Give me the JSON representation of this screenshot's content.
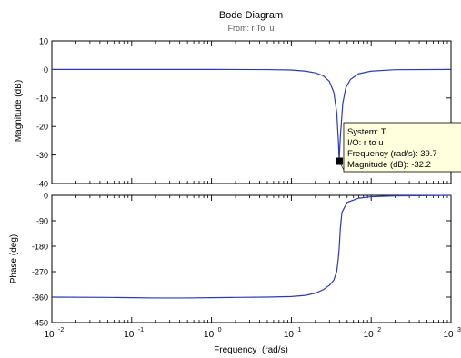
{
  "title": "Bode Diagram",
  "subtitle": "From: r  To: u",
  "colors": {
    "curve": "#2b3bb5",
    "axis_bg": "#e6e6e6",
    "axis_line": "#000000",
    "tooltip_bg": "#ffffdd",
    "marker": "#000000"
  },
  "datatip": {
    "lines": [
      "System: T",
      "I/O: r to u",
      "Frequency (rad/s): 39.7",
      "Magnitude (dB): -32.2"
    ],
    "frequency": 39.7,
    "magnitude_db": -32.2
  },
  "chart_data": [
    {
      "type": "line",
      "name": "magnitude",
      "ylabel": "Magnitude (dB)",
      "xscale": "log",
      "xlim": [
        0.01,
        1000
      ],
      "ylim": [
        -40,
        10
      ],
      "yticks": [
        10,
        0,
        -10,
        -20,
        -30,
        -40
      ],
      "ytick_labels": [
        "10",
        "0",
        "-10",
        "-20",
        "-30",
        "-40"
      ],
      "series": [
        {
          "x": [
            0.01,
            0.1,
            1,
            5,
            10,
            15,
            20,
            25,
            30,
            34,
            37,
            39,
            39.7,
            41,
            44,
            48,
            55,
            70,
            100,
            200,
            1000
          ],
          "y": [
            0,
            0,
            0,
            -0.05,
            -0.2,
            -0.6,
            -1.2,
            -2.2,
            -4.2,
            -8,
            -15,
            -26,
            -32.2,
            -24,
            -12,
            -6.5,
            -3.5,
            -1.5,
            -0.6,
            -0.1,
            0
          ]
        }
      ]
    },
    {
      "type": "line",
      "name": "phase",
      "ylabel": "Phase (deg)",
      "xlabel": "Frequency  (rad/s)",
      "xscale": "log",
      "xlim": [
        0.01,
        1000
      ],
      "ylim": [
        -450,
        0
      ],
      "yticks": [
        0,
        -90,
        -180,
        -270,
        -360,
        -450
      ],
      "ytick_labels": [
        "0",
        "-90",
        "-180",
        "-270",
        "-360",
        "-450"
      ],
      "xticks": [
        0.01,
        0.1,
        1,
        10,
        100,
        1000
      ],
      "xtick_labels": [
        {
          "base": "10",
          "exp": "-2"
        },
        {
          "base": "10",
          "exp": "-1"
        },
        {
          "base": "10",
          "exp": "0"
        },
        {
          "base": "10",
          "exp": "1"
        },
        {
          "base": "10",
          "exp": "2"
        },
        {
          "base": "10",
          "exp": "3"
        }
      ],
      "series": [
        {
          "x": [
            0.01,
            0.05,
            0.1,
            0.2,
            0.5,
            1,
            2,
            5,
            10,
            15,
            20,
            25,
            30,
            34,
            37,
            38.5,
            39.7,
            41,
            43,
            50,
            70,
            100,
            200,
            1000
          ],
          "y": [
            -360,
            -361,
            -362,
            -363,
            -363,
            -362,
            -361,
            -360,
            -358,
            -354,
            -346,
            -334,
            -318,
            -300,
            -270,
            -230,
            -190,
            -120,
            -60,
            -25,
            -10,
            -5,
            -2,
            0
          ]
        }
      ]
    }
  ]
}
